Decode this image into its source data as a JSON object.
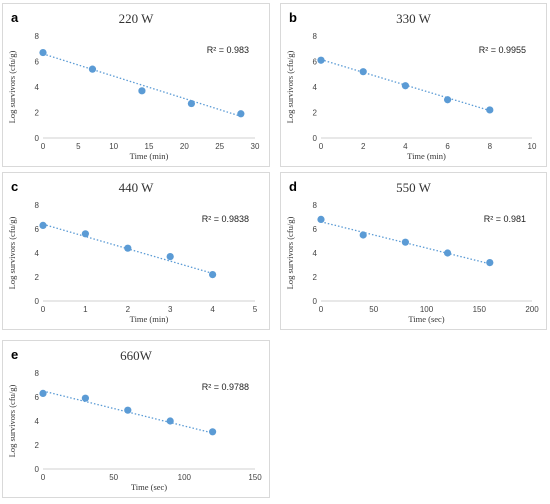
{
  "chart_data": [
    {
      "type": "scatter",
      "panel_label": "a",
      "title": "220  W",
      "xlabel": "Time (min)",
      "ylabel": "Log survivors (cfu/g)",
      "xlim": [
        0,
        30
      ],
      "xticks": [
        0,
        5,
        10,
        15,
        20,
        25,
        30
      ],
      "ylim": [
        0,
        8
      ],
      "yticks": [
        0,
        2,
        4,
        6,
        8
      ],
      "x": [
        0,
        7,
        14,
        21,
        28
      ],
      "y": [
        6.7,
        5.4,
        3.7,
        2.7,
        1.9
      ],
      "trendline": {
        "style": "dotted",
        "x": [
          0,
          28
        ],
        "y": [
          6.6,
          1.7
        ]
      },
      "r2_label": "R² = 0.983",
      "color": "#5b9bd5"
    },
    {
      "type": "scatter",
      "panel_label": "b",
      "title": "330 W",
      "xlabel": "Time (min)",
      "ylabel": "Log survivors (cfu/g)",
      "xlim": [
        0,
        10
      ],
      "xticks": [
        0,
        2,
        4,
        6,
        8,
        10
      ],
      "ylim": [
        0,
        8
      ],
      "yticks": [
        0,
        2,
        4,
        6,
        8
      ],
      "x": [
        0,
        2,
        4,
        6,
        8
      ],
      "y": [
        6.1,
        5.2,
        4.1,
        3.0,
        2.2
      ],
      "trendline": {
        "style": "dotted",
        "x": [
          0,
          8
        ],
        "y": [
          6.15,
          2.15
        ]
      },
      "r2_label": "R² = 0.9955",
      "color": "#5b9bd5"
    },
    {
      "type": "scatter",
      "panel_label": "c",
      "title": "440 W",
      "xlabel": "Time (min)",
      "ylabel": "Log survivors (cfu/g)",
      "xlim": [
        0,
        5
      ],
      "xticks": [
        0,
        1,
        2,
        3,
        4,
        5
      ],
      "ylim": [
        0,
        8
      ],
      "yticks": [
        0,
        2,
        4,
        6,
        8
      ],
      "x": [
        0,
        1,
        2,
        3,
        4
      ],
      "y": [
        6.3,
        5.6,
        4.4,
        3.7,
        2.2
      ],
      "trendline": {
        "style": "dotted",
        "x": [
          0,
          4
        ],
        "y": [
          6.4,
          2.3
        ]
      },
      "r2_label": "R² = 0.9838",
      "color": "#5b9bd5"
    },
    {
      "type": "scatter",
      "panel_label": "d",
      "title": "550 W",
      "xlabel": "Time (sec)",
      "ylabel": "Log survivors (cfu/g)",
      "xlim": [
        0,
        200
      ],
      "xticks": [
        0,
        50,
        100,
        150,
        200
      ],
      "ylim": [
        0,
        8
      ],
      "yticks": [
        0,
        2,
        4,
        6,
        8
      ],
      "x": [
        0,
        40,
        80,
        120,
        160
      ],
      "y": [
        6.8,
        5.5,
        4.9,
        4.0,
        3.2
      ],
      "trendline": {
        "style": "dotted",
        "x": [
          0,
          160
        ],
        "y": [
          6.6,
          3.1
        ]
      },
      "r2_label": "R² = 0.981",
      "color": "#5b9bd5"
    },
    {
      "type": "scatter",
      "panel_label": "e",
      "title": "660W",
      "xlabel": "Time (sec)",
      "ylabel": "Log survivors (cfu/g)",
      "xlim": [
        0,
        150
      ],
      "xticks": [
        0,
        50,
        100,
        150
      ],
      "ylim": [
        0,
        8
      ],
      "yticks": [
        0,
        2,
        4,
        6,
        8
      ],
      "x": [
        0,
        30,
        60,
        90,
        120
      ],
      "y": [
        6.3,
        5.9,
        4.9,
        4.0,
        3.1
      ],
      "trendline": {
        "style": "dotted",
        "x": [
          0,
          120
        ],
        "y": [
          6.5,
          3.0
        ]
      },
      "r2_label": "R² = 0.9788",
      "color": "#5b9bd5"
    }
  ]
}
